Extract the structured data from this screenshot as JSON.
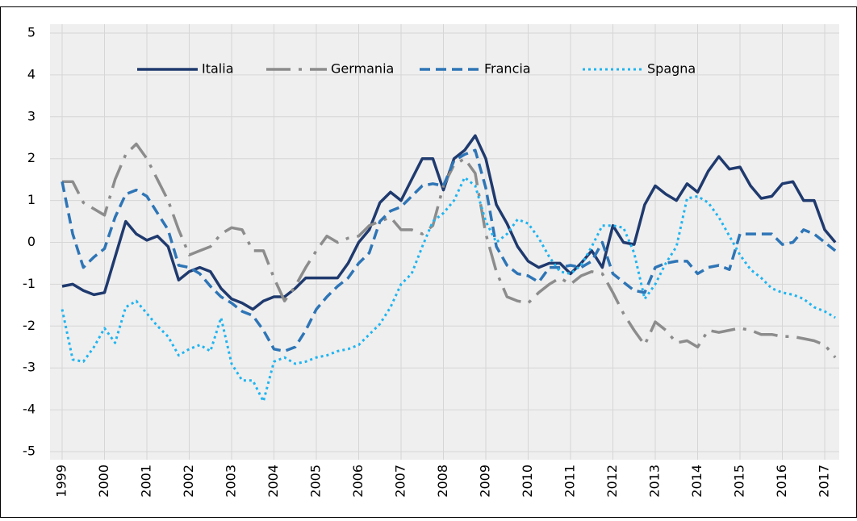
{
  "chart_data": {
    "type": "line",
    "categories": [
      "1999",
      null,
      null,
      null,
      "2000",
      null,
      null,
      null,
      "2001",
      null,
      null,
      null,
      "2002",
      null,
      null,
      null,
      "2003",
      null,
      null,
      null,
      "2004",
      null,
      null,
      null,
      "2005",
      null,
      null,
      null,
      "2006",
      null,
      null,
      null,
      "2007",
      null,
      null,
      null,
      "2008",
      null,
      null,
      null,
      "2009",
      null,
      null,
      null,
      "2010",
      null,
      null,
      null,
      "2011",
      null,
      null,
      null,
      "2012",
      null,
      null,
      null,
      "2013",
      null,
      null,
      null,
      "2014",
      null,
      null,
      null,
      "2015",
      null,
      null,
      null,
      "2016",
      null,
      null,
      null,
      "2017",
      null
    ],
    "ylim": [
      -5,
      5
    ],
    "yticks": [
      -5,
      -4,
      -3,
      -2,
      -1,
      0,
      1,
      2,
      3,
      4,
      5
    ],
    "grid": true,
    "legend": "top",
    "series": [
      {
        "name": "Italia",
        "color": "#1f3a6e",
        "style": "solid",
        "values": [
          -1.05,
          -1.0,
          -1.15,
          -1.25,
          -1.2,
          -0.35,
          0.5,
          0.2,
          0.05,
          0.15,
          -0.1,
          -0.9,
          -0.7,
          -0.6,
          -0.7,
          -1.1,
          -1.35,
          -1.45,
          -1.6,
          -1.4,
          -1.3,
          -1.3,
          -1.1,
          -0.85,
          -0.85,
          -0.85,
          -0.85,
          -0.5,
          0.0,
          0.3,
          0.95,
          1.2,
          1.0,
          1.5,
          2.0,
          2.0,
          1.25,
          2.0,
          2.2,
          2.55,
          2.0,
          0.9,
          0.45,
          -0.1,
          -0.45,
          -0.6,
          -0.5,
          -0.5,
          -0.75,
          -0.5,
          -0.2,
          -0.6,
          0.4,
          0.0,
          -0.05,
          0.9,
          1.35,
          1.15,
          1.0,
          1.4,
          1.2,
          1.7,
          2.05,
          1.75,
          1.8,
          1.35,
          1.05,
          1.1,
          1.4,
          1.45,
          1.0,
          1.0,
          0.3,
          0.0
        ]
      },
      {
        "name": "Germania",
        "color": "#8c8c8c",
        "style": "dash-dot",
        "values": [
          1.45,
          1.45,
          0.95,
          0.8,
          0.65,
          1.5,
          2.1,
          2.35,
          2.0,
          1.5,
          1.0,
          0.3,
          -0.3,
          -0.2,
          -0.1,
          0.2,
          0.35,
          0.3,
          -0.2,
          -0.2,
          -0.85,
          -1.4,
          -1.05,
          -0.6,
          -0.2,
          0.15,
          0.0,
          0.1,
          0.15,
          0.4,
          0.5,
          0.6,
          0.3,
          0.3,
          0.2,
          0.4,
          1.35,
          1.85,
          2.0,
          1.65,
          0.2,
          -0.7,
          -1.3,
          -1.4,
          -1.45,
          -1.2,
          -1.0,
          -0.85,
          -1.0,
          -0.8,
          -0.7,
          -0.75,
          -1.2,
          -1.7,
          -2.1,
          -2.45,
          -1.9,
          -2.1,
          -2.4,
          -2.35,
          -2.5,
          -2.1,
          -2.15,
          -2.1,
          -2.05,
          -2.1,
          -2.2,
          -2.2,
          -2.25,
          -2.25,
          -2.3,
          -2.35,
          -2.45,
          -2.75
        ]
      },
      {
        "name": "Francia",
        "color": "#2e75b6",
        "style": "dash",
        "values": [
          1.45,
          0.2,
          -0.6,
          -0.35,
          -0.15,
          0.6,
          1.15,
          1.25,
          1.1,
          0.7,
          0.3,
          -0.55,
          -0.6,
          -0.75,
          -1.05,
          -1.3,
          -1.45,
          -1.65,
          -1.75,
          -2.1,
          -2.55,
          -2.6,
          -2.5,
          -2.1,
          -1.6,
          -1.3,
          -1.05,
          -0.85,
          -0.5,
          -0.25,
          0.5,
          0.75,
          0.85,
          1.1,
          1.35,
          1.4,
          1.35,
          1.95,
          2.1,
          2.2,
          1.3,
          -0.1,
          -0.55,
          -0.75,
          -0.8,
          -0.95,
          -0.6,
          -0.6,
          -0.55,
          -0.6,
          -0.45,
          0.0,
          -0.75,
          -0.95,
          -1.15,
          -1.2,
          -0.6,
          -0.5,
          -0.45,
          -0.45,
          -0.75,
          -0.6,
          -0.55,
          -0.65,
          0.2,
          0.2,
          0.2,
          0.2,
          -0.05,
          0.0,
          0.3,
          0.2,
          0.0,
          -0.2
        ]
      },
      {
        "name": "Spagna",
        "color": "#1fb4f0",
        "style": "dot",
        "values": [
          -1.6,
          -2.8,
          -2.85,
          -2.5,
          -2.05,
          -2.4,
          -1.55,
          -1.4,
          -1.7,
          -2.0,
          -2.25,
          -2.7,
          -2.55,
          -2.45,
          -2.6,
          -1.8,
          -2.9,
          -3.3,
          -3.3,
          -3.8,
          -2.85,
          -2.75,
          -2.9,
          -2.85,
          -2.75,
          -2.7,
          -2.6,
          -2.55,
          -2.45,
          -2.2,
          -1.95,
          -1.55,
          -1.0,
          -0.75,
          -0.1,
          0.5,
          0.7,
          1.0,
          1.55,
          1.35,
          0.5,
          0.0,
          0.2,
          0.55,
          0.45,
          0.1,
          -0.35,
          -0.7,
          -0.75,
          -0.55,
          -0.1,
          0.4,
          0.4,
          0.35,
          -0.25,
          -1.35,
          -1.0,
          -0.5,
          -0.1,
          1.05,
          1.1,
          0.95,
          0.6,
          0.15,
          -0.3,
          -0.65,
          -0.85,
          -1.1,
          -1.2,
          -1.25,
          -1.35,
          -1.55,
          -1.65,
          -1.8
        ]
      }
    ]
  }
}
